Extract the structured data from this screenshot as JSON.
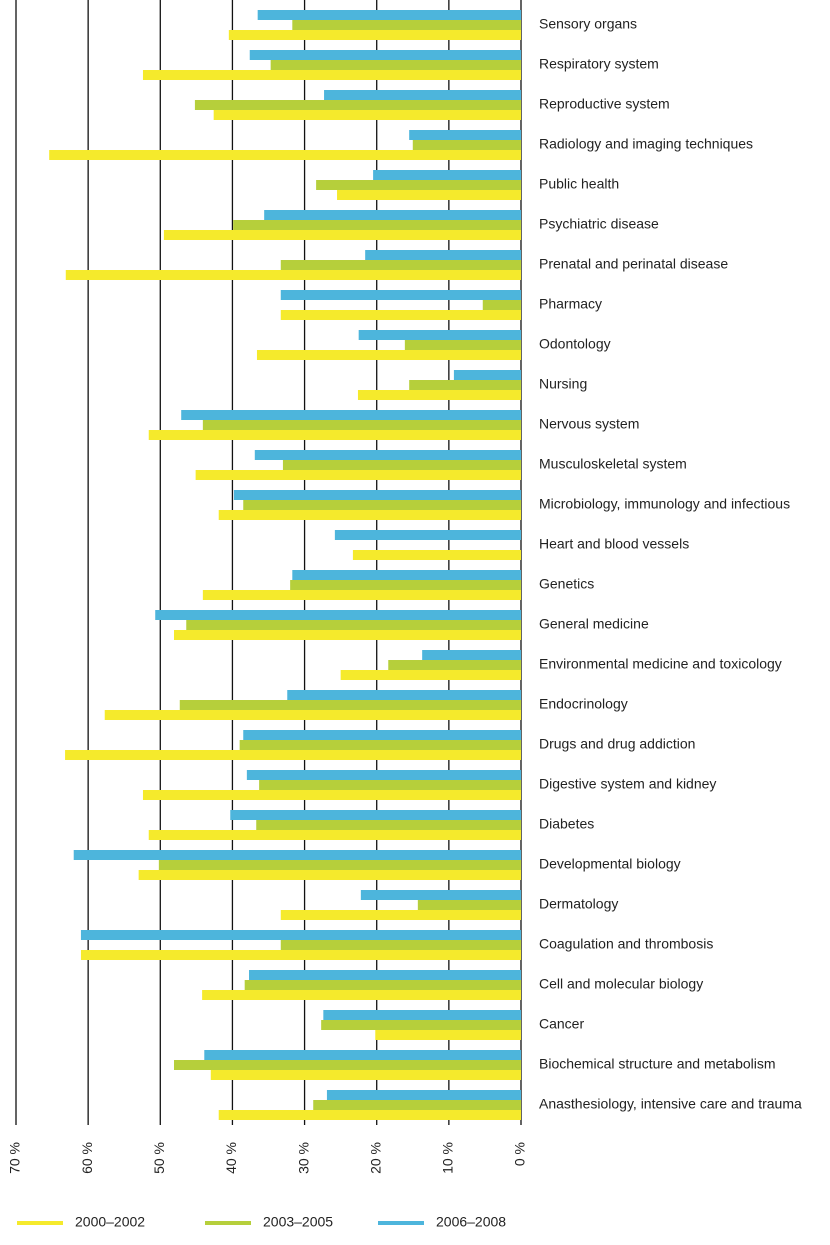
{
  "chart_data": {
    "type": "hbar",
    "categories": [
      "Sensory organs",
      "Respiratory system",
      "Reproductive system",
      "Radiology and imaging techniques",
      "Public health",
      "Psychiatric disease",
      "Prenatal and perinatal disease",
      "Pharmacy",
      "Odontology",
      "Nursing",
      "Nervous system",
      "Musculoskeletal system",
      "Microbiology, immunology and infectious",
      "Heart and blood vessels",
      "Genetics",
      "General medicine",
      "Environmental medicine and toxicology",
      "Endocrinology",
      "Drugs and drug addiction",
      "Digestive system and kidney",
      "Diabetes",
      "Developmental biology",
      "Dermatology",
      "Coagulation and thrombosis",
      "Cell and molecular biology",
      "Cancer",
      "Biochemical structure and metabolism",
      "Anasthesiology, intensive care and trauma"
    ],
    "series": [
      {
        "name": "2006–2008",
        "color": "#4db5dc",
        "values": [
          36.5,
          37.6,
          27.3,
          15.5,
          20.5,
          35.6,
          21.6,
          33.3,
          22.5,
          9.3,
          47.1,
          36.9,
          39.8,
          25.8,
          31.7,
          50.7,
          13.7,
          32.4,
          38.5,
          38.0,
          40.3,
          62.0,
          22.2,
          61.0,
          37.7,
          27.4,
          43.9,
          26.9
        ]
      },
      {
        "name": "2003–2005",
        "color": "#b6cf3b",
        "values": [
          31.7,
          34.7,
          45.2,
          15.0,
          28.4,
          39.9,
          33.3,
          5.3,
          16.1,
          15.5,
          44.1,
          33.0,
          38.5,
          null,
          32.0,
          46.4,
          18.4,
          47.3,
          39.0,
          36.3,
          36.7,
          50.2,
          14.3,
          33.3,
          38.3,
          27.7,
          48.1,
          28.8
        ]
      },
      {
        "name": "2000–2002",
        "color": "#f5ea2c",
        "values": [
          40.5,
          52.4,
          42.6,
          65.4,
          25.5,
          49.5,
          63.1,
          33.3,
          36.6,
          22.6,
          51.6,
          45.1,
          41.9,
          23.3,
          44.1,
          48.1,
          25.0,
          57.7,
          63.2,
          52.4,
          51.6,
          53.0,
          33.3,
          61.0,
          44.2,
          20.2,
          43.0,
          41.9
        ]
      }
    ],
    "xlim": [
      0,
      70
    ],
    "reversed": true,
    "xticks": [
      {
        "value": 0,
        "label": "0 %"
      },
      {
        "value": 10,
        "label": "10 %"
      },
      {
        "value": 20,
        "label": "20 %"
      },
      {
        "value": 30,
        "label": "30 %"
      },
      {
        "value": 40,
        "label": "40 %"
      },
      {
        "value": 50,
        "label": "50 %"
      },
      {
        "value": 60,
        "label": "60 %"
      },
      {
        "value": 70,
        "label": "70 %"
      }
    ],
    "grid": true,
    "legend": "bottom"
  }
}
